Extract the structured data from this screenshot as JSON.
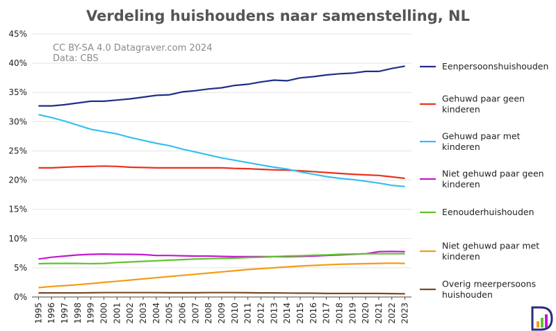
{
  "chart_data": {
    "type": "line",
    "title": "Verdeling huishoudens naar samenstelling, NL",
    "annotation": [
      "CC BY-SA 4.0 Datagraver.com 2024",
      "Data: CBS"
    ],
    "xlabel": "",
    "ylabel": "",
    "ylim": [
      0,
      45
    ],
    "yticks": [
      0,
      5,
      10,
      15,
      20,
      25,
      30,
      35,
      40,
      45
    ],
    "ytick_labels": [
      "0%",
      "5%",
      "10%",
      "15%",
      "20%",
      "25%",
      "30%",
      "35%",
      "40%",
      "45%"
    ],
    "x": [
      "1995",
      "1996",
      "1997",
      "1998",
      "1999",
      "2000",
      "2001",
      "2002",
      "2003",
      "2004",
      "2005",
      "2006",
      "2007",
      "2008",
      "2009",
      "2010",
      "2011",
      "2012",
      "2013",
      "2014",
      "2015",
      "2016",
      "2017",
      "2018",
      "2019",
      "2020",
      "2021",
      "2022",
      "2023"
    ],
    "grid": "horizontal",
    "legend_position": "right",
    "series": [
      {
        "name": "Eenpersoonshuishouden",
        "label_lines": [
          "Eenpersoonshuishouden"
        ],
        "color": "#1f2f86",
        "values": [
          32.7,
          32.7,
          32.9,
          33.2,
          33.5,
          33.5,
          33.7,
          33.9,
          34.2,
          34.5,
          34.6,
          35.1,
          35.3,
          35.6,
          35.8,
          36.2,
          36.4,
          36.8,
          37.1,
          37.0,
          37.5,
          37.7,
          38.0,
          38.2,
          38.3,
          38.6,
          38.6,
          39.1,
          39.5
        ]
      },
      {
        "name": "Gehuwd paar geen kinderen",
        "label_lines": [
          "Gehuwd paar geen",
          "kinderen"
        ],
        "color": "#e8321e",
        "values": [
          22.1,
          22.1,
          22.2,
          22.3,
          22.35,
          22.4,
          22.35,
          22.2,
          22.15,
          22.1,
          22.1,
          22.1,
          22.1,
          22.1,
          22.1,
          22.0,
          21.95,
          21.85,
          21.75,
          21.7,
          21.6,
          21.45,
          21.3,
          21.15,
          21.0,
          20.9,
          20.8,
          20.55,
          20.3
        ]
      },
      {
        "name": "Gehuwd paar met kinderen",
        "label_lines": [
          "Gehuwd paar met",
          "kinderen"
        ],
        "color": "#36bff0",
        "values": [
          31.2,
          30.7,
          30.1,
          29.4,
          28.7,
          28.3,
          27.9,
          27.3,
          26.8,
          26.3,
          25.9,
          25.3,
          24.8,
          24.3,
          23.8,
          23.4,
          23.0,
          22.6,
          22.2,
          21.9,
          21.4,
          21.0,
          20.6,
          20.3,
          20.1,
          19.8,
          19.5,
          19.1,
          18.9
        ]
      },
      {
        "name": "Niet gehuwd paar geen kinderen",
        "label_lines": [
          "Niet gehuwd paar geen",
          "kinderen"
        ],
        "color": "#c218d0",
        "values": [
          6.5,
          6.8,
          7.0,
          7.2,
          7.3,
          7.35,
          7.3,
          7.3,
          7.25,
          7.1,
          7.1,
          7.05,
          7.0,
          7.0,
          6.95,
          6.9,
          6.9,
          6.9,
          6.9,
          6.9,
          6.95,
          7.0,
          7.1,
          7.2,
          7.3,
          7.4,
          7.75,
          7.8,
          7.75
        ]
      },
      {
        "name": "Eenouderhuishouden",
        "label_lines": [
          "Eenouderhuishouden"
        ],
        "color": "#62c22d",
        "values": [
          5.7,
          5.75,
          5.75,
          5.75,
          5.7,
          5.75,
          5.9,
          6.0,
          6.1,
          6.2,
          6.3,
          6.4,
          6.5,
          6.55,
          6.6,
          6.65,
          6.75,
          6.8,
          6.9,
          7.0,
          7.05,
          7.15,
          7.2,
          7.3,
          7.35,
          7.4,
          7.4,
          7.4,
          7.4
        ]
      },
      {
        "name": "Niet gehuwd paar met kinderen",
        "label_lines": [
          "Niet gehuwd paar met",
          "kinderen"
        ],
        "color": "#f39c12",
        "values": [
          1.6,
          1.8,
          1.95,
          2.1,
          2.3,
          2.5,
          2.7,
          2.9,
          3.1,
          3.3,
          3.5,
          3.7,
          3.9,
          4.1,
          4.3,
          4.5,
          4.7,
          4.85,
          5.0,
          5.15,
          5.3,
          5.4,
          5.5,
          5.6,
          5.65,
          5.7,
          5.75,
          5.8,
          5.75
        ]
      },
      {
        "name": "Overig meerpersoons huishouden",
        "label_lines": [
          "Overig meerpersoons",
          "huishouden"
        ],
        "color": "#7a4a24",
        "values": [
          0.7,
          0.7,
          0.7,
          0.7,
          0.72,
          0.75,
          0.75,
          0.75,
          0.75,
          0.75,
          0.72,
          0.72,
          0.72,
          0.75,
          0.75,
          0.75,
          0.72,
          0.7,
          0.7,
          0.68,
          0.65,
          0.65,
          0.6,
          0.6,
          0.6,
          0.6,
          0.6,
          0.58,
          0.55
        ]
      }
    ]
  }
}
